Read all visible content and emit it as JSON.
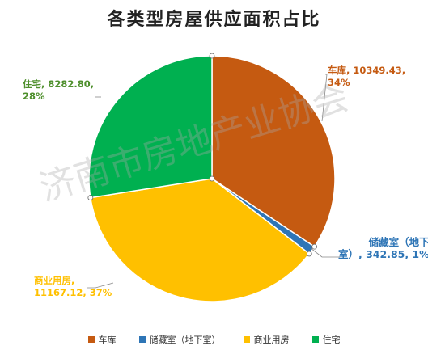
{
  "chart_data": {
    "type": "pie",
    "title": "各类型房屋供应面积占比",
    "slices": [
      {
        "name": "车库",
        "value": 10349.43,
        "percent": 34,
        "color": "#C55A11",
        "label": "车库, 10349.43,\n34%"
      },
      {
        "name": "储藏室（地下室）",
        "value": 342.85,
        "percent": 1,
        "color": "#2E75B6",
        "label": "储藏室（地下\n室）, 342.85, 1%"
      },
      {
        "name": "商业用房",
        "value": 11167.12,
        "percent": 37,
        "color": "#FFC000",
        "label": "商业用房,\n11167.12, 37%"
      },
      {
        "name": "住宅",
        "value": 8282.8,
        "percent": 28,
        "color": "#00B050",
        "label": "住宅, 8282.80,\n28%"
      }
    ],
    "legend": [
      "车库",
      "储藏室（地下室）",
      "商业用房",
      "住宅"
    ],
    "legend_position": "bottom"
  },
  "watermark": "济南市房地产业协会"
}
